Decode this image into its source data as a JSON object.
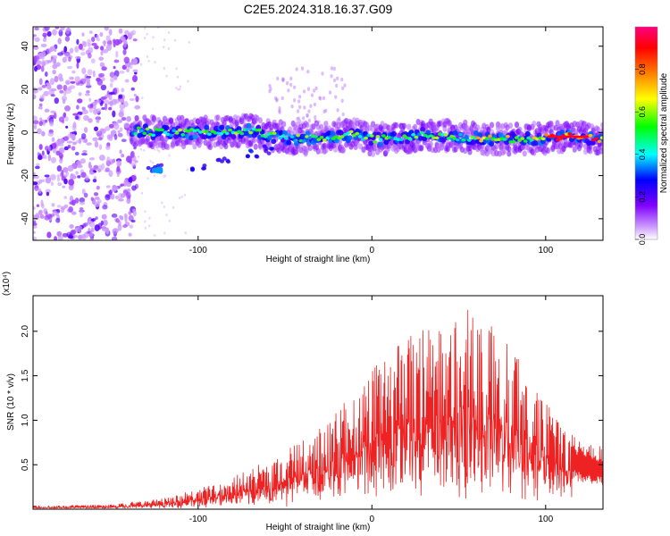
{
  "title": "C2E5.2024.318.16.37.G09",
  "chart_data": [
    {
      "type": "heatmap",
      "title": "C2E5.2024.318.16.37.G09",
      "xlabel": "Height of straight line (km)",
      "ylabel": "Frequency (Hz)",
      "xlim": [
        -195,
        133
      ],
      "ylim": [
        -50,
        49
      ],
      "xticks": [
        -100,
        0,
        100
      ],
      "yticks": [
        -40,
        -20,
        0,
        20,
        40
      ],
      "xtick_labels": [
        "-100",
        "0",
        "100"
      ],
      "ytick_labels": [
        "-40",
        "-20",
        "0",
        "20",
        "40"
      ],
      "colorbar": {
        "label": "Normalized spectral amplitude",
        "range": [
          0,
          1
        ],
        "ticks": [
          0.0,
          0.2,
          0.4,
          0.6,
          0.8
        ],
        "tick_labels": [
          "0.0",
          "0.2",
          "0.4",
          "0.6",
          "0.8"
        ],
        "colormap": [
          "#ffffff",
          "#8000ff",
          "#0000ff",
          "#00ffff",
          "#00ff00",
          "#ffff00",
          "#ff8000",
          "#ff0000",
          "#ff0080"
        ]
      },
      "ridge": [
        {
          "x": -138,
          "y": 1
        },
        {
          "x": -125,
          "y": 0
        },
        {
          "x": -110,
          "y": 0
        },
        {
          "x": -90,
          "y": 0
        },
        {
          "x": -70,
          "y": 1
        },
        {
          "x": -55,
          "y": -2
        },
        {
          "x": -40,
          "y": -3
        },
        {
          "x": -25,
          "y": -2
        },
        {
          "x": -10,
          "y": -1
        },
        {
          "x": 0,
          "y": -3
        },
        {
          "x": 10,
          "y": -3
        },
        {
          "x": 30,
          "y": -1
        },
        {
          "x": 50,
          "y": -2
        },
        {
          "x": 70,
          "y": -3
        },
        {
          "x": 90,
          "y": -3
        },
        {
          "x": 110,
          "y": -2
        },
        {
          "x": 133,
          "y": -3
        }
      ],
      "side_band": [
        {
          "x": -125,
          "y": -17
        },
        {
          "x": -100,
          "y": -16
        },
        {
          "x": -85,
          "y": -14
        },
        {
          "x": -70,
          "y": -10
        },
        {
          "x": -60,
          "y": -8
        }
      ],
      "noise_region_x": [
        -195,
        -135
      ]
    },
    {
      "type": "line",
      "xlabel": "Height of straight line (km)",
      "ylabel": "SNR (10 * v/v)",
      "multiplier": "(x10⁴)",
      "xlim": [
        -195,
        133
      ],
      "ylim": [
        0,
        24000
      ],
      "xticks": [
        -100,
        0,
        100
      ],
      "yticks": [
        5000,
        10000,
        15000,
        20000
      ],
      "xtick_labels": [
        "-100",
        "0",
        "100"
      ],
      "ytick_labels": [
        "0.5",
        "1.0",
        "1.5",
        "2.0"
      ],
      "color": "#ee2222",
      "envelope": {
        "x": [
          -195,
          -150,
          -120,
          -100,
          -80,
          -60,
          -40,
          -20,
          0,
          20,
          40,
          55,
          70,
          90,
          110,
          125,
          133
        ],
        "y": [
          400,
          500,
          1200,
          2200,
          3500,
          5200,
          7500,
          10500,
          15000,
          18500,
          20500,
          21500,
          19500,
          15000,
          8500,
          7000,
          6500
        ]
      }
    }
  ]
}
